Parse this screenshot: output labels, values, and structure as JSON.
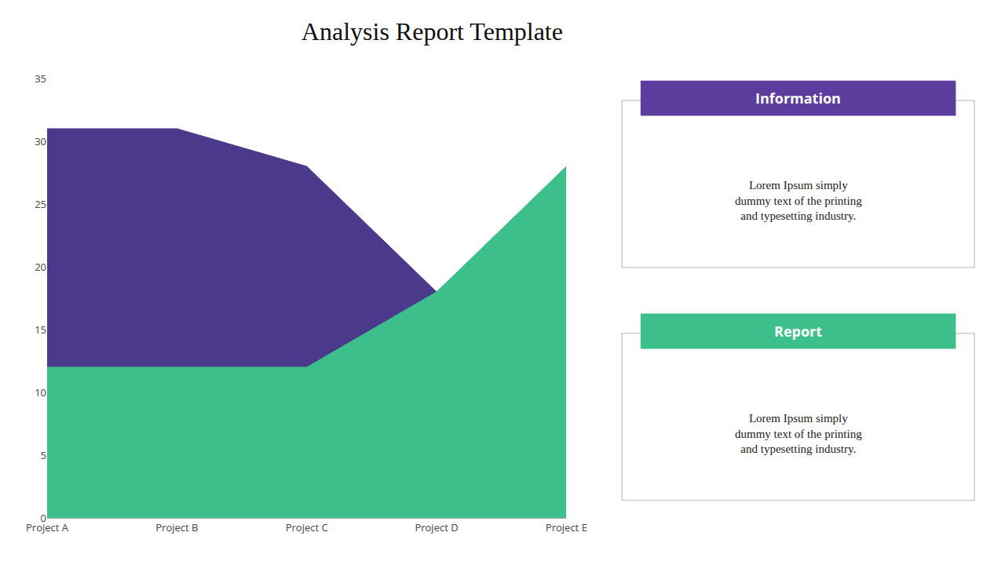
{
  "chart_data": {
    "type": "area",
    "title": "Analysis Report Template",
    "categories": [
      "Project A",
      "Project B",
      "Project C",
      "Project D",
      "Project E"
    ],
    "series": [
      {
        "color": "#4b3a8c",
        "values": [
          31,
          31,
          28,
          18,
          0
        ]
      },
      {
        "color": "#3dbf8c",
        "values": [
          12,
          12,
          12,
          18,
          28
        ]
      }
    ],
    "ylim": [
      0,
      35
    ],
    "yticks": [
      0,
      5,
      10,
      15,
      20,
      25,
      30,
      35
    ],
    "grid": false,
    "stacked": false,
    "annotations": [
      {
        "title": "Information",
        "color": "#5c3d9e",
        "text": "Lorem Ipsum simply\ndummy text of the printing\nand typesetting industry."
      },
      {
        "title": "Report",
        "color": "#3dbf8c",
        "text": "Lorem Ipsum simply\ndummy text of the printing\nand typesetting industry."
      }
    ]
  }
}
